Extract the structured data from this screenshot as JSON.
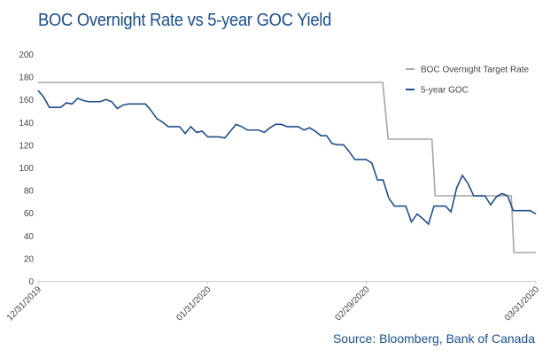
{
  "chart_data": {
    "type": "line",
    "title": "BOC Overnight Rate vs 5-year GOC Yield",
    "source": "Source: Bloomberg, Bank of Canada",
    "xlabel": "",
    "ylabel": "",
    "ylim": [
      0,
      200
    ],
    "yticks": [
      0,
      20,
      40,
      60,
      80,
      100,
      120,
      140,
      160,
      180,
      200
    ],
    "xlim_days": [
      0,
      91
    ],
    "xticks": [
      {
        "day": 0,
        "label": "12/31/2019"
      },
      {
        "day": 31,
        "label": "01/31/2020"
      },
      {
        "day": 60,
        "label": "02/29/2020"
      },
      {
        "day": 91,
        "label": "03/31/2020"
      }
    ],
    "legend_position": "top-right",
    "grid": false,
    "series": [
      {
        "name": "BOC Overnight Target Rate",
        "color": "#a6a6a6",
        "points": [
          [
            0,
            175
          ],
          [
            63,
            175
          ],
          [
            64,
            125
          ],
          [
            72,
            125
          ],
          [
            72.6,
            75
          ],
          [
            86.5,
            75
          ],
          [
            87,
            25
          ],
          [
            91,
            25
          ]
        ]
      },
      {
        "name": "5-year GOC",
        "color": "#1f4e87",
        "values": [
          168,
          162,
          153,
          153,
          153,
          157,
          156,
          161,
          159,
          158,
          158,
          158,
          160,
          158,
          152,
          155,
          156,
          156,
          156,
          156,
          150,
          143,
          140,
          136,
          136,
          136,
          130,
          136,
          131,
          132,
          127,
          127,
          127,
          126,
          132,
          138,
          136,
          133,
          133,
          133,
          131,
          135,
          138,
          138,
          136,
          136,
          136,
          133,
          135,
          132,
          128,
          128,
          121,
          120,
          120,
          114,
          107,
          107,
          107,
          104,
          89,
          89,
          73,
          66,
          66,
          66,
          52,
          59,
          55,
          50,
          66,
          66,
          66,
          61,
          82,
          93,
          86,
          75,
          75,
          75,
          67,
          74,
          77,
          75,
          62,
          62,
          62,
          62,
          59
        ]
      }
    ]
  }
}
